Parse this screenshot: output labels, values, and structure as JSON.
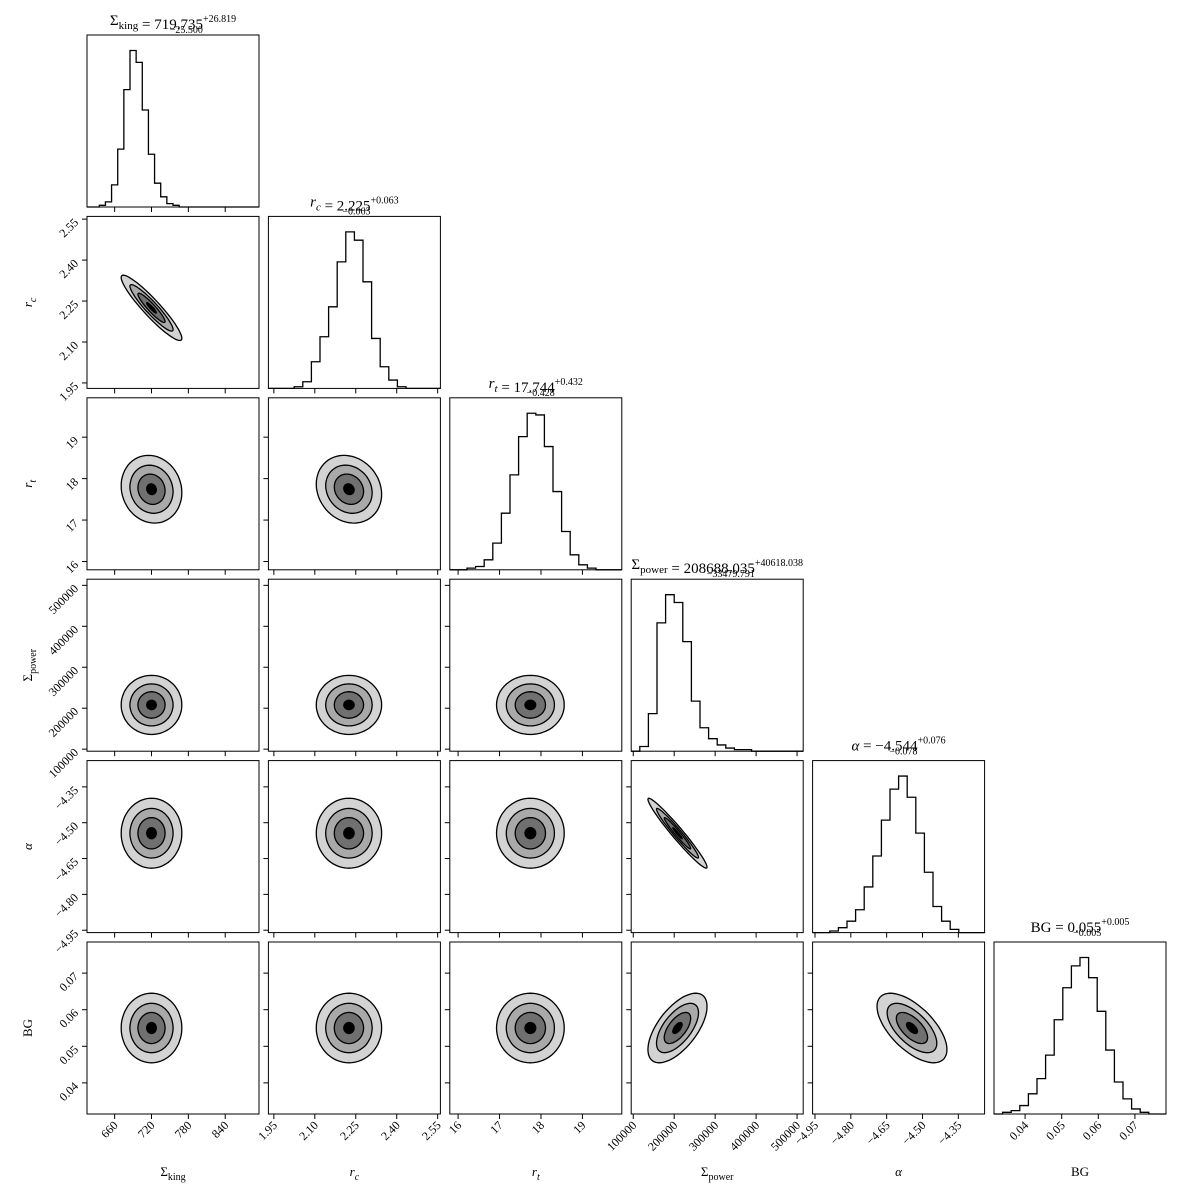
{
  "page": {
    "background": "#ffffff"
  },
  "colors": {
    "ink": "#000000",
    "contour_levels": [
      "#d3d3d3",
      "#a9a9a9",
      "#707070",
      "#000000"
    ]
  },
  "chart_data": {
    "type": "corner",
    "grid": false,
    "parameters": [
      {
        "key": "sigma_king",
        "label_main": "Σ",
        "label_sub": "king",
        "label_italic": false,
        "title_main": "Σ",
        "title_sub": "king",
        "title_italic": false,
        "value": "719.735",
        "err_plus": "+26.819",
        "err_minus": "−25.500",
        "range": [
          615,
          895
        ],
        "ticks": [
          660,
          720,
          780,
          840
        ],
        "tick_labels": [
          "660",
          "720",
          "780",
          "840"
        ],
        "hist": {
          "start": 615,
          "step": 10,
          "counts": [
            0,
            0,
            1,
            3,
            13,
            34,
            69,
            92,
            85,
            57,
            31,
            14,
            6,
            2,
            1,
            0,
            0,
            0,
            0,
            0,
            0,
            0,
            0,
            0,
            0,
            0,
            0,
            0
          ]
        }
      },
      {
        "key": "r_c",
        "label_main": "r",
        "label_sub": "c",
        "label_italic": true,
        "title_main": "r",
        "title_sub": "c",
        "title_italic": true,
        "value": "2.225",
        "err_plus": "+0.063",
        "err_minus": "−0.063",
        "range": [
          1.93,
          2.56
        ],
        "ticks": [
          1.95,
          2.1,
          2.25,
          2.4,
          2.55
        ],
        "tick_labels": [
          "1.95",
          "2.10",
          "2.25",
          "2.40",
          "2.55"
        ],
        "hist": {
          "start": 1.93,
          "step": 0.0315,
          "counts": [
            0,
            0,
            0,
            1,
            4,
            16,
            31,
            49,
            76,
            94,
            89,
            64,
            30,
            13,
            5,
            1,
            0,
            0,
            0,
            0
          ]
        }
      },
      {
        "key": "r_t",
        "label_main": "r",
        "label_sub": "t",
        "label_italic": true,
        "title_main": "r",
        "title_sub": "t",
        "title_italic": true,
        "value": "17.744",
        "err_plus": "+0.432",
        "err_minus": "−0.428",
        "range": [
          15.8,
          19.95
        ],
        "ticks": [
          16,
          17,
          18,
          19
        ],
        "tick_labels": [
          "16",
          "17",
          "18",
          "19"
        ],
        "hist": {
          "start": 15.8,
          "step": 0.2075,
          "counts": [
            0,
            0,
            1,
            2,
            6,
            16,
            34,
            57,
            80,
            94,
            93,
            74,
            47,
            23,
            9,
            3,
            1,
            0,
            0,
            0
          ]
        }
      },
      {
        "key": "sigma_power",
        "label_main": "Σ",
        "label_sub": "power",
        "label_italic": false,
        "title_main": "Σ",
        "title_sub": "power",
        "title_italic": false,
        "value": "208688.035",
        "err_plus": "+40618.038",
        "err_minus": "−33479.791",
        "range": [
          95000,
          515000
        ],
        "ticks": [
          100000,
          200000,
          300000,
          400000,
          500000
        ],
        "tick_labels": [
          "100000",
          "200000",
          "300000",
          "400000",
          "500000"
        ],
        "hist": {
          "start": 95000,
          "step": 21000,
          "counts": [
            0,
            3,
            24,
            82,
            100,
            95,
            70,
            32,
            15,
            8,
            4,
            2,
            1,
            1,
            0,
            0,
            0,
            0,
            0,
            0
          ]
        }
      },
      {
        "key": "alpha",
        "label_main": "α",
        "label_sub": "",
        "label_italic": true,
        "title_main": "α",
        "title_sub": "",
        "title_italic": true,
        "value": "−4.544",
        "err_plus": "+0.076",
        "err_minus": "−0.078",
        "range": [
          -4.96,
          -4.24
        ],
        "ticks": [
          -4.95,
          -4.8,
          -4.65,
          -4.5,
          -4.35
        ],
        "tick_labels": [
          "−4.95",
          "−4.80",
          "−4.65",
          "−4.50",
          "−4.35"
        ],
        "hist": {
          "start": -4.96,
          "step": 0.036,
          "counts": [
            0,
            0,
            1,
            3,
            7,
            14,
            28,
            47,
            69,
            88,
            96,
            83,
            61,
            37,
            16,
            7,
            2,
            0,
            0,
            0
          ]
        }
      },
      {
        "key": "bg",
        "label_main": "BG",
        "label_sub": "",
        "label_italic": false,
        "title_main": "BG",
        "title_sub": "",
        "title_italic": false,
        "value": "0.055",
        "err_plus": "+0.005",
        "err_minus": "−0.005",
        "range": [
          0.0315,
          0.0785
        ],
        "ticks": [
          0.04,
          0.05,
          0.06,
          0.07
        ],
        "tick_labels": [
          "0.04",
          "0.05",
          "0.06",
          "0.07"
        ],
        "hist": {
          "start": 0.0315,
          "step": 0.00235,
          "counts": [
            0,
            1,
            2,
            5,
            12,
            21,
            35,
            56,
            75,
            88,
            93,
            81,
            61,
            38,
            19,
            9,
            3,
            1,
            0,
            0
          ]
        }
      }
    ],
    "contours": {
      "levels": 4,
      "radii_sigma": [
        1.9,
        1.35,
        0.85,
        0.3
      ],
      "pairs": [
        {
          "x": "sigma_king",
          "y": "r_c",
          "corr": -0.93
        },
        {
          "x": "sigma_king",
          "y": "r_t",
          "corr": -0.1
        },
        {
          "x": "r_c",
          "y": "r_t",
          "corr": -0.15
        },
        {
          "x": "sigma_king",
          "y": "sigma_power",
          "corr": 0.0
        },
        {
          "x": "r_c",
          "y": "sigma_power",
          "corr": 0.0
        },
        {
          "x": "r_t",
          "y": "sigma_power",
          "corr": 0.0
        },
        {
          "x": "sigma_king",
          "y": "alpha",
          "corr": 0.0
        },
        {
          "x": "r_c",
          "y": "alpha",
          "corr": 0.0
        },
        {
          "x": "r_t",
          "y": "alpha",
          "corr": 0.0
        },
        {
          "x": "sigma_power",
          "y": "alpha",
          "corr": -0.97
        },
        {
          "x": "sigma_king",
          "y": "bg",
          "corr": 0.0
        },
        {
          "x": "r_c",
          "y": "bg",
          "corr": 0.0
        },
        {
          "x": "r_t",
          "y": "bg",
          "corr": 0.0
        },
        {
          "x": "sigma_power",
          "y": "bg",
          "corr": 0.62
        },
        {
          "x": "alpha",
          "y": "bg",
          "corr": -0.62
        }
      ],
      "stats": {
        "sigma_king": {
          "mean": 720,
          "sd": 26
        },
        "r_c": {
          "mean": 2.225,
          "sd": 0.063
        },
        "r_t": {
          "mean": 17.744,
          "sd": 0.43
        },
        "sigma_power": {
          "mean": 208000,
          "sd": 38000
        },
        "alpha": {
          "mean": -4.544,
          "sd": 0.077
        },
        "bg": {
          "mean": 0.055,
          "sd": 0.005
        }
      }
    }
  }
}
